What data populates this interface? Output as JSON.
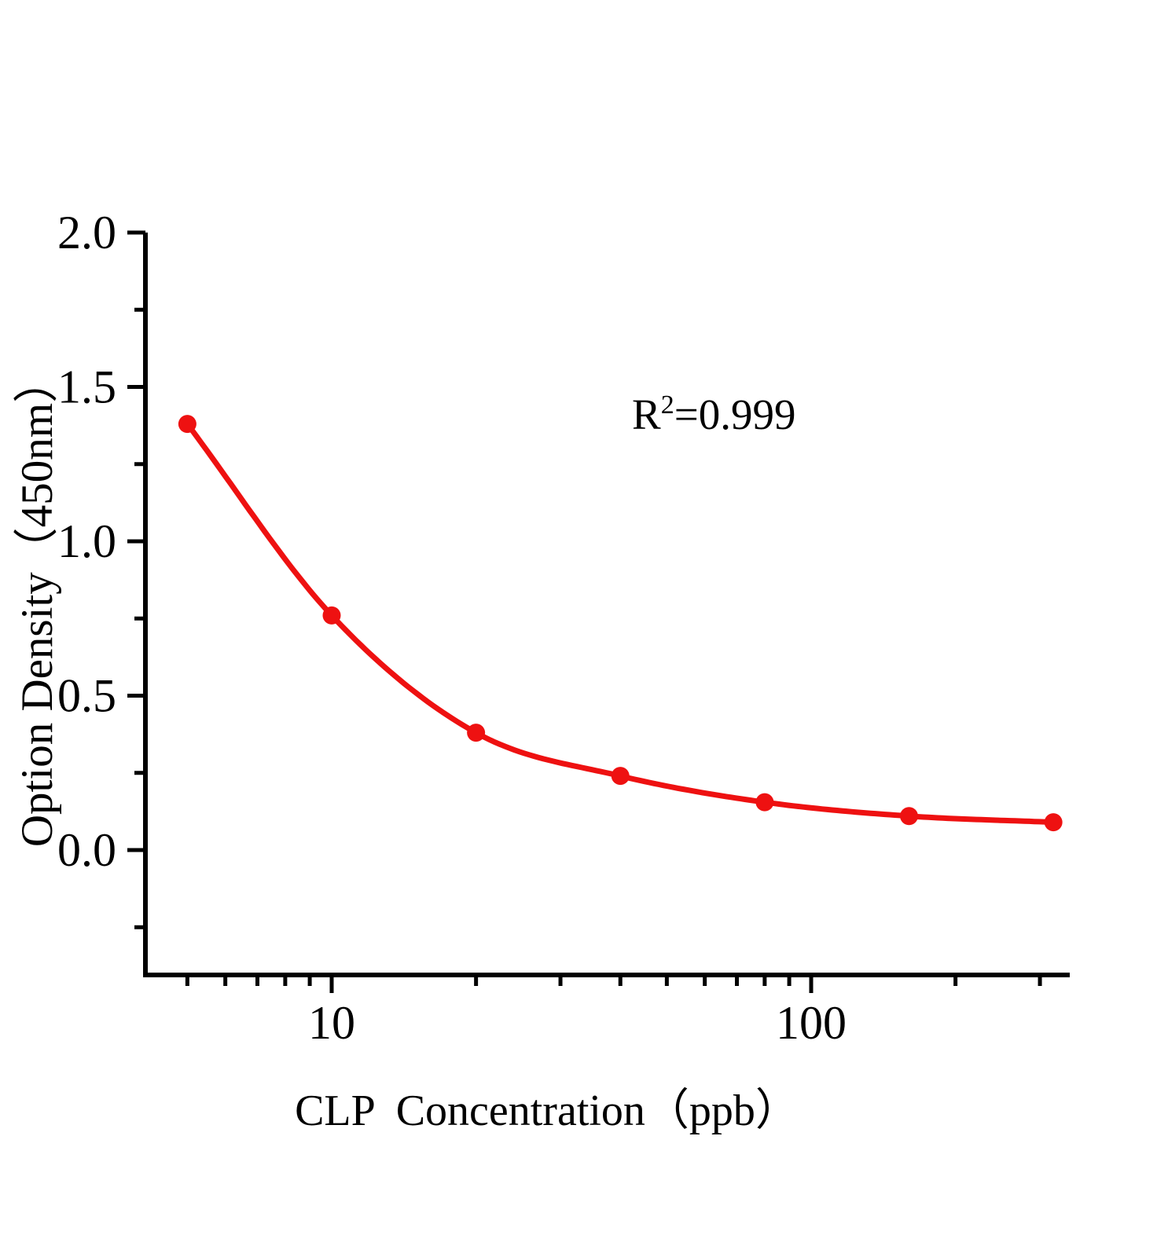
{
  "figure": {
    "background": "#ffffff"
  },
  "chart_data": {
    "type": "scatter",
    "subtype": "standard-curve-with-smooth-fit-line",
    "title": "",
    "xlabel": "CLP  Concentration（ppb）",
    "ylabel": "Option Density（450nm）",
    "x_scale": "log10",
    "x": [
      5,
      10,
      20,
      40,
      80,
      160,
      320
    ],
    "y": [
      1.38,
      0.76,
      0.38,
      0.24,
      0.155,
      0.11,
      0.09
    ],
    "xlim": [
      4.1,
      345
    ],
    "ylim": [
      -0.41,
      2.0
    ],
    "x_ticks_major": [
      10,
      100
    ],
    "x_tick_labels": [
      "10",
      "100"
    ],
    "x_ticks_minor": [
      5,
      6,
      7,
      8,
      9,
      20,
      30,
      40,
      50,
      60,
      70,
      80,
      90,
      200,
      300
    ],
    "y_ticks_major": [
      0,
      0.5,
      1,
      1.5,
      2
    ],
    "y_tick_labels": [
      "0.0",
      "0.5",
      "1.0",
      "1.5",
      "2.0"
    ],
    "y_ticks_minor": [
      -0.25,
      0.25,
      0.75,
      1.25,
      1.75
    ],
    "grid": false,
    "legend": false,
    "line_color": "#ee1111",
    "marker_color": "#ee1111",
    "axis_color": "#000000",
    "annotation": {
      "base": "R",
      "sup": "2",
      "rest": "=0.999"
    }
  }
}
